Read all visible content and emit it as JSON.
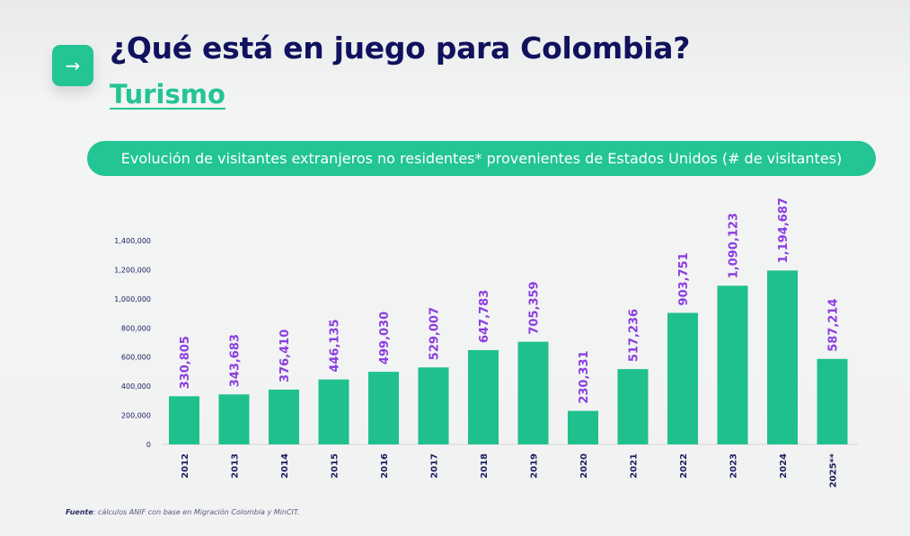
{
  "header": {
    "icon": "arrow-right-icon",
    "title": "¿Qué está en juego para Colombia?",
    "subtitle": "Turismo"
  },
  "chart_data": {
    "type": "bar",
    "title": "Evolución de visitantes extranjeros no residentes* provenientes de Estados Unidos (# de visitantes)",
    "xlabel": "",
    "ylabel": "",
    "categories": [
      "2012",
      "2013",
      "2014",
      "2015",
      "2016",
      "2017",
      "2018",
      "2019",
      "2020",
      "2021",
      "2022",
      "2023",
      "2024",
      "2025**"
    ],
    "values": [
      330805,
      343683,
      376410,
      446135,
      499030,
      529007,
      647783,
      705359,
      230331,
      517236,
      903751,
      1090123,
      1194687,
      587214
    ],
    "data_labels": [
      "330,805",
      "343,683",
      "376,410",
      "446,135",
      "499,030",
      "529,007",
      "647,783",
      "705,359",
      "230,331",
      "517,236",
      "903,751",
      "1,090,123",
      "1,194,687",
      "587,214"
    ],
    "yticks": [
      "0",
      "200,000",
      "400,000",
      "600,000",
      "800,000",
      "1,000,000",
      "1,200,000",
      "1,400,000"
    ],
    "ylim": [
      0,
      1400000
    ],
    "grid": false,
    "colors": {
      "bar": "#1fc08e",
      "data_label": "#8a3de0",
      "axis_label": "#1a1d5e"
    }
  },
  "footer": {
    "source_label": "Fuente",
    "source_text": ": cálculos ANIF con base en Migración Colombia y MinCIT."
  }
}
